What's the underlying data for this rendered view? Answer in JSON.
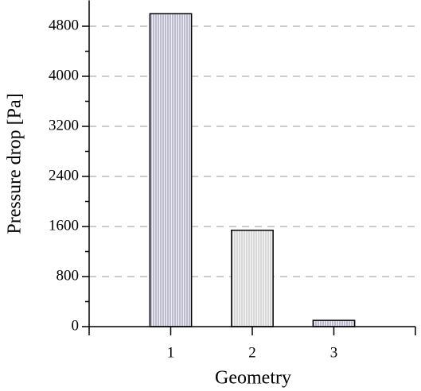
{
  "chart_data": {
    "type": "bar",
    "x_label": "Geometry",
    "y_label": "Pressure drop [Pa]",
    "x": [
      1,
      2,
      3
    ],
    "values": [
      5000,
      1540,
      100
    ],
    "colors": [
      "#9a9ab4",
      "#c8c8c8",
      "#9a9ab4"
    ],
    "xlim": [
      0,
      4
    ],
    "xticks": [
      1,
      2,
      3
    ],
    "ylim": [
      0,
      5200
    ],
    "yticks": [
      0,
      800,
      1600,
      2400,
      3200,
      4000,
      4800
    ],
    "grid": true
  }
}
